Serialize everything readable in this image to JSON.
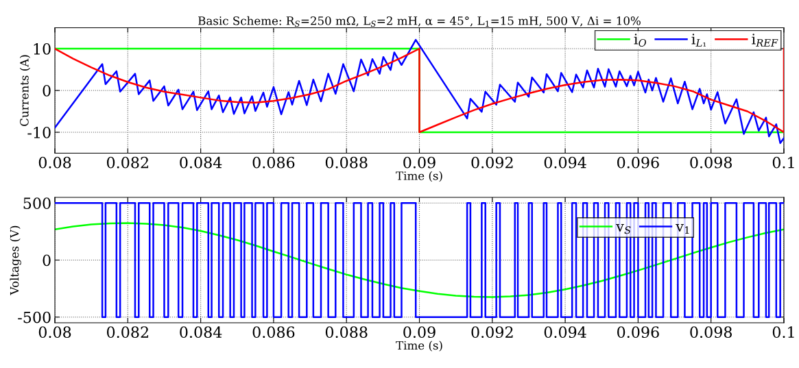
{
  "chart_data": [
    {
      "type": "line",
      "title": "Basic Scheme: R$_{S}$=250 mΩ, L$_{S}$=2 mH, α = 45°, L$_{1}$=15 mH, 500 V, Δi = 10%",
      "xlabel": "Time (s)",
      "ylabel": "Currents (A)",
      "xlim": [
        0.08,
        0.1
      ],
      "xticks": [
        0.08,
        0.082,
        0.084,
        0.086,
        0.088,
        0.09,
        0.092,
        0.094,
        0.096,
        0.098,
        0.1
      ],
      "ylim": [
        -15,
        15
      ],
      "yticks": [
        -10,
        0,
        10
      ],
      "grid": true,
      "legend": "top right",
      "series": [
        {
          "name": "i$_{O}$",
          "color": "#00ff00",
          "x": [
            0.08,
            0.09,
            0.09,
            0.1
          ],
          "values": [
            10,
            10,
            -10,
            -10
          ]
        },
        {
          "name": "i$_{L₁}$",
          "color": "#0000ff",
          "x": [
            0.08,
            0.0813,
            0.08139,
            0.08169,
            0.08179,
            0.0822,
            0.0823,
            0.0826,
            0.0827,
            0.083,
            0.08311,
            0.08339,
            0.0835,
            0.0838,
            0.0839,
            0.08421,
            0.0843,
            0.0845,
            0.08461,
            0.08481,
            0.08491,
            0.08511,
            0.0852,
            0.08541,
            0.0855,
            0.08572,
            0.08582,
            0.086,
            0.08621,
            0.08641,
            0.08651,
            0.0867,
            0.08691,
            0.08709,
            0.0873,
            0.0875,
            0.0877,
            0.08791,
            0.0882,
            0.0884,
            0.08859,
            0.08871,
            0.08891,
            0.08901,
            0.08921,
            0.08931,
            0.08951,
            0.0899,
            0.09131,
            0.0914,
            0.09171,
            0.09181,
            0.09211,
            0.09221,
            0.09262,
            0.0927,
            0.093,
            0.09309,
            0.09341,
            0.09349,
            0.0938,
            0.09389,
            0.09419,
            0.0943,
            0.09449,
            0.0946,
            0.09479,
            0.0949,
            0.09509,
            0.09519,
            0.09539,
            0.09549,
            0.09569,
            0.09579,
            0.09589,
            0.096,
            0.0962,
            0.09629,
            0.09639,
            0.09649,
            0.09669,
            0.0969,
            0.09709,
            0.09728,
            0.09749,
            0.09769,
            0.0978,
            0.09789,
            0.098,
            0.09818,
            0.09839,
            0.0987,
            0.0989,
            0.09917,
            0.09931,
            0.09951,
            0.09959,
            0.09979,
            0.0999,
            0.1
          ],
          "values": [
            -8.9,
            6.3,
            1.5,
            4.6,
            -0.3,
            4.0,
            -0.9,
            2.4,
            -2.5,
            1.0,
            -3.6,
            0.2,
            -4.5,
            -0.3,
            -4.7,
            -0.2,
            -4.5,
            -1.2,
            -5.2,
            -1.7,
            -5.6,
            -1.7,
            -5.5,
            -1.4,
            -4.9,
            -0.5,
            -3.9,
            0.8,
            -5.7,
            -0.4,
            -3.4,
            2.3,
            -3.5,
            2.6,
            -2.6,
            4.0,
            -0.8,
            6.3,
            -0.2,
            7.4,
            3.6,
            7.5,
            4.0,
            8.0,
            4.9,
            9.1,
            6.1,
            12.1,
            -6.7,
            -2.0,
            -5.1,
            -0.3,
            -3.4,
            1.4,
            -2.7,
            1.9,
            -1.5,
            3.1,
            -0.5,
            3.9,
            -0.2,
            4.2,
            -0.4,
            3.8,
            0.7,
            4.8,
            0.7,
            5.2,
            0.9,
            5.1,
            0.9,
            4.6,
            1.0,
            3.5,
            1.2,
            4.5,
            -0.5,
            2.6,
            0.0,
            3.0,
            -2.7,
            2.9,
            -3.1,
            2.1,
            -4.5,
            0.4,
            -3.1,
            -0.9,
            -4.6,
            -0.4,
            -7.9,
            -2.1,
            -10.4,
            -5.2,
            -9.6,
            -6.5,
            -11.0,
            -8.1,
            -12.6,
            -11.4
          ]
        },
        {
          "name": "i$_{REF}$",
          "color": "#ff0000",
          "x": [
            0.08,
            0.0805,
            0.081,
            0.0815,
            0.082,
            0.0825,
            0.083,
            0.0835,
            0.084,
            0.0845,
            0.085,
            0.0855,
            0.086,
            0.0865,
            0.087,
            0.0875,
            0.088,
            0.0885,
            0.089,
            0.0895,
            0.09,
            0.09,
            0.0905,
            0.091,
            0.0915,
            0.092,
            0.0925,
            0.093,
            0.0935,
            0.094,
            0.0945,
            0.095,
            0.0955,
            0.096,
            0.0965,
            0.097,
            0.0975,
            0.098,
            0.0985,
            0.099,
            0.0995,
            0.1,
            0.1
          ],
          "values": [
            10,
            7.6,
            5.5,
            3.6,
            2.0,
            0.7,
            -0.3,
            -1.0,
            -1.7,
            -2.4,
            -2.8,
            -2.9,
            -2.5,
            -1.8,
            -0.9,
            0.3,
            2.3,
            4.0,
            5.8,
            7.8,
            10,
            -10,
            -8.2,
            -6.4,
            -4.7,
            -3.2,
            -1.9,
            -0.7,
            0.4,
            1.3,
            2.0,
            2.5,
            2.6,
            2.4,
            1.8,
            1.0,
            -0.2,
            -2.2,
            -3.6,
            -5.0,
            -7.3,
            -10,
            10
          ]
        }
      ]
    },
    {
      "type": "line",
      "xlabel": "Time (s)",
      "ylabel": "Voltages (V)",
      "xlim": [
        0.08,
        0.1
      ],
      "xticks": [
        0.08,
        0.082,
        0.084,
        0.086,
        0.088,
        0.09,
        0.092,
        0.094,
        0.096,
        0.098,
        0.1
      ],
      "ylim": [
        -550,
        550
      ],
      "yticks": [
        -500,
        0,
        500
      ],
      "grid": true,
      "legend": "top right",
      "series": [
        {
          "name": "v$_{S}$",
          "color": "#00ff00",
          "x": [
            0.08,
            0.0805,
            0.081,
            0.0815,
            0.082,
            0.0825,
            0.083,
            0.0835,
            0.084,
            0.0845,
            0.085,
            0.0855,
            0.086,
            0.0865,
            0.087,
            0.0875,
            0.088,
            0.0885,
            0.089,
            0.0895,
            0.09,
            0.0905,
            0.091,
            0.0915,
            0.092,
            0.0925,
            0.093,
            0.0935,
            0.094,
            0.0945,
            0.095,
            0.0955,
            0.096,
            0.0965,
            0.097,
            0.0975,
            0.098,
            0.0985,
            0.099,
            0.0995,
            0.1
          ],
          "values": [
            269,
            294,
            312,
            322,
            325,
            319,
            306,
            285,
            255,
            218,
            176,
            128,
            75,
            25,
            -28,
            -78,
            -127,
            -170,
            -209,
            -245,
            -272,
            -296,
            -312,
            -322,
            -325,
            -319,
            -306,
            -285,
            -257,
            -222,
            -183,
            -138,
            -91,
            -41,
            10,
            61,
            110,
            157,
            199,
            237,
            269
          ]
        },
        {
          "name": "v$_{1}$",
          "color": "#0000ff",
          "type": "step",
          "x": [
            0.08,
            0.0813,
            0.08139,
            0.08169,
            0.08179,
            0.0822,
            0.0823,
            0.0826,
            0.0827,
            0.083,
            0.08311,
            0.08339,
            0.0835,
            0.0838,
            0.0839,
            0.08421,
            0.0843,
            0.0845,
            0.08461,
            0.08481,
            0.08491,
            0.08511,
            0.0852,
            0.08541,
            0.0855,
            0.08572,
            0.08582,
            0.086,
            0.08621,
            0.08641,
            0.08651,
            0.0867,
            0.08691,
            0.08709,
            0.0873,
            0.0875,
            0.0877,
            0.08791,
            0.0882,
            0.0884,
            0.08859,
            0.08871,
            0.08891,
            0.08901,
            0.08921,
            0.08931,
            0.08951,
            0.0899,
            0.09131,
            0.0914,
            0.09171,
            0.09181,
            0.09211,
            0.09221,
            0.09262,
            0.0927,
            0.093,
            0.09309,
            0.09341,
            0.09349,
            0.0938,
            0.09389,
            0.09419,
            0.0943,
            0.09449,
            0.0946,
            0.09479,
            0.0949,
            0.09509,
            0.09519,
            0.09539,
            0.09549,
            0.09569,
            0.09579,
            0.09589,
            0.096,
            0.0962,
            0.09629,
            0.09639,
            0.09649,
            0.09669,
            0.0969,
            0.09709,
            0.09728,
            0.09749,
            0.09769,
            0.0978,
            0.09789,
            0.098,
            0.09818,
            0.09839,
            0.0987,
            0.0989,
            0.09917,
            0.09931,
            0.09951,
            0.09959,
            0.09979,
            0.0999,
            0.1
          ],
          "values": [
            500,
            -500,
            500,
            -500,
            500,
            -500,
            500,
            -500,
            500,
            -500,
            500,
            -500,
            500,
            -500,
            500,
            -500,
            500,
            -500,
            500,
            -500,
            500,
            -500,
            500,
            -500,
            500,
            -500,
            500,
            -500,
            500,
            -500,
            500,
            -500,
            500,
            -500,
            500,
            -500,
            500,
            -500,
            500,
            -500,
            500,
            -500,
            500,
            -500,
            500,
            -500,
            500,
            -500,
            500,
            -500,
            500,
            -500,
            500,
            -500,
            500,
            -500,
            500,
            -500,
            500,
            -500,
            500,
            -500,
            500,
            -500,
            500,
            -500,
            500,
            -500,
            500,
            -500,
            500,
            -500,
            500,
            -500,
            500,
            -500,
            500,
            -500,
            500,
            -500,
            500,
            -500,
            500,
            -500,
            500,
            -500,
            500,
            -500,
            500,
            -500,
            500,
            -500,
            500,
            -500,
            500,
            -500,
            500,
            -500,
            500,
            500
          ]
        }
      ]
    }
  ]
}
